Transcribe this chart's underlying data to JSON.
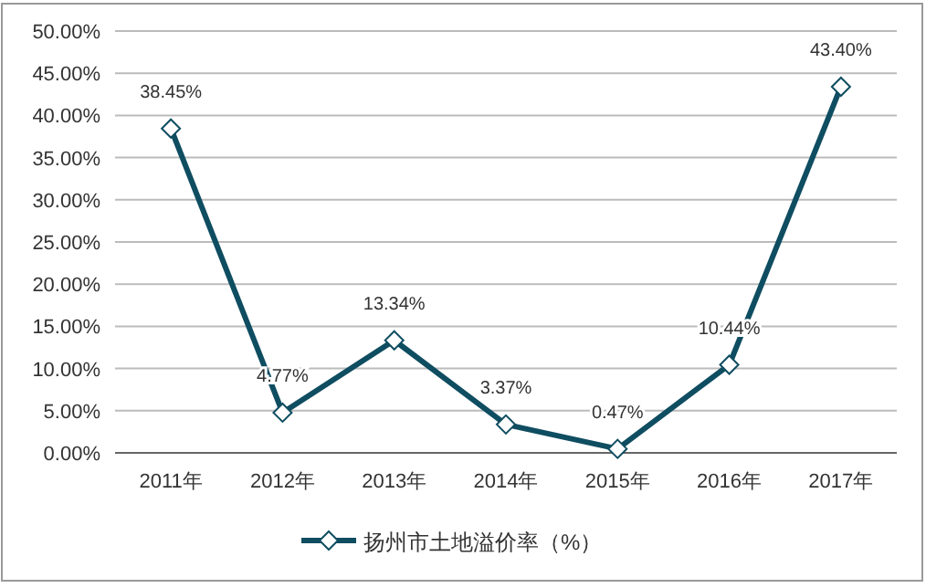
{
  "chart_data": {
    "type": "line",
    "categories": [
      "2011年",
      "2012年",
      "2013年",
      "2014年",
      "2015年",
      "2016年",
      "2017年"
    ],
    "series": [
      {
        "name": "扬州市土地溢价率（%）",
        "color": "#0f4d61",
        "values": [
          38.45,
          4.77,
          13.34,
          3.37,
          0.47,
          10.44,
          43.4
        ],
        "value_labels": [
          "38.45%",
          "4.77%",
          "13.34%",
          "3.37%",
          "0.47%",
          "10.44%",
          "43.40%"
        ]
      }
    ],
    "ylim": [
      0,
      50
    ],
    "yticks": [
      {
        "value": 0,
        "label": "0.00%"
      },
      {
        "value": 5,
        "label": "5.00%"
      },
      {
        "value": 10,
        "label": "10.00%"
      },
      {
        "value": 15,
        "label": "15.00%"
      },
      {
        "value": 20,
        "label": "20.00%"
      },
      {
        "value": 25,
        "label": "25.00%"
      },
      {
        "value": 30,
        "label": "30.00%"
      },
      {
        "value": 35,
        "label": "35.00%"
      },
      {
        "value": 40,
        "label": "40.00%"
      },
      {
        "value": 45,
        "label": "45.00%"
      },
      {
        "value": 50,
        "label": "50.00%"
      }
    ],
    "grid": "y",
    "legend": "bottom",
    "marker": "diamond",
    "line_style": "solid"
  }
}
